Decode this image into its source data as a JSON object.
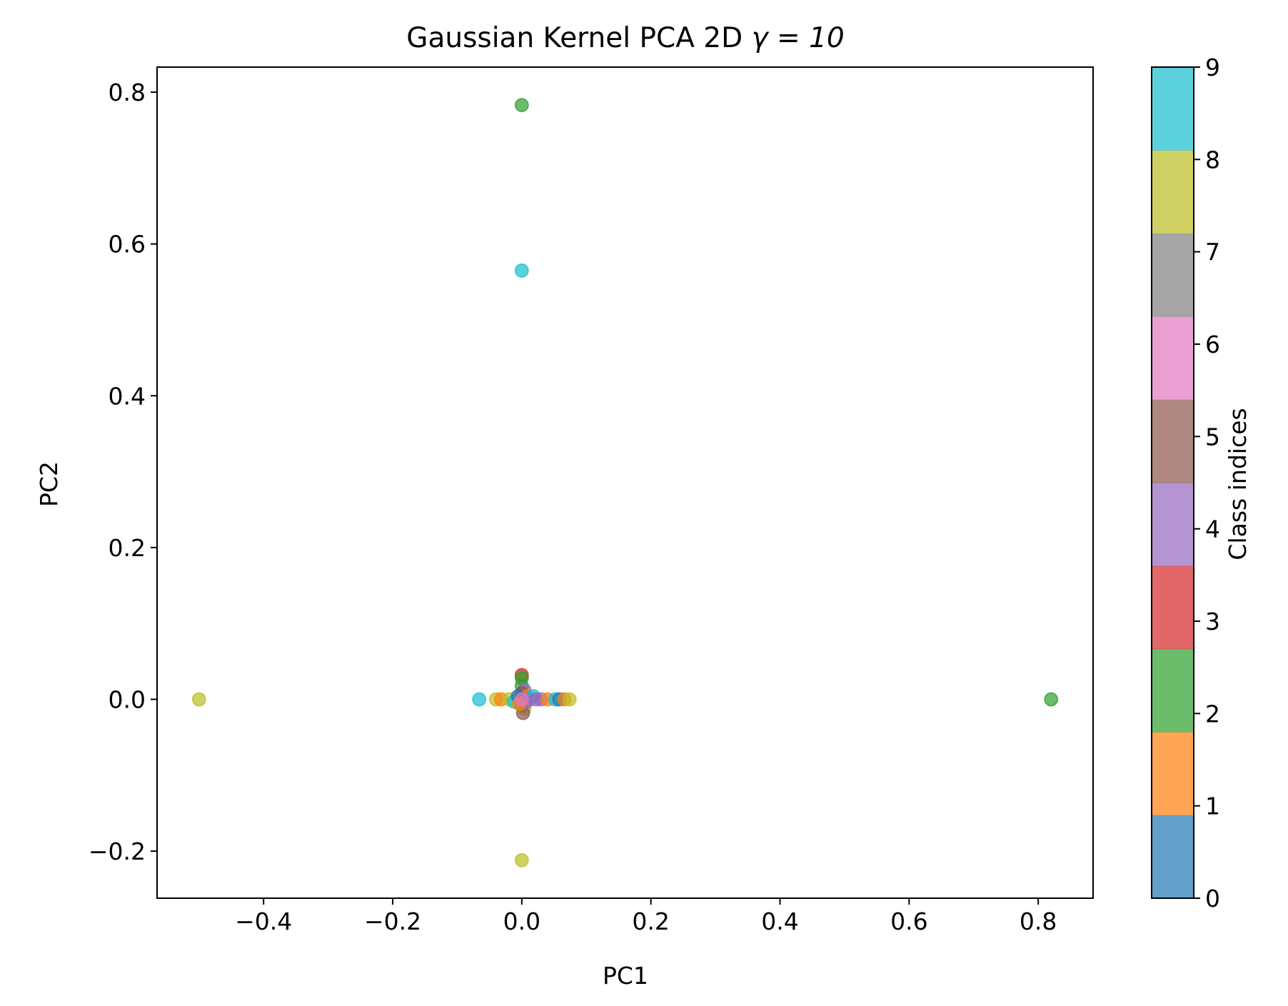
{
  "chart_data": {
    "type": "scatter",
    "title": "Gaussian Kernel PCA 2D",
    "title_math": "γ = 10",
    "xlabel": "PC1",
    "ylabel": "PC2",
    "xlim": [
      -0.565,
      0.885
    ],
    "ylim": [
      -0.262,
      0.833
    ],
    "xticks": [
      -0.4,
      -0.2,
      0.0,
      0.2,
      0.4,
      0.6,
      0.8
    ],
    "xtick_labels": [
      "−0.4",
      "−0.2",
      "0.0",
      "0.2",
      "0.4",
      "0.6",
      "0.8"
    ],
    "yticks": [
      -0.2,
      0.0,
      0.2,
      0.4,
      0.6,
      0.8
    ],
    "ytick_labels": [
      "−0.2",
      "0.0",
      "0.2",
      "0.4",
      "0.6",
      "0.8"
    ],
    "grid": false,
    "colorbar": {
      "label": "Class indices",
      "range": [
        0,
        9
      ],
      "ticks": [
        0,
        1,
        2,
        3,
        4,
        5,
        6,
        7,
        8,
        9
      ],
      "tick_labels": [
        "0",
        "1",
        "2",
        "3",
        "4",
        "5",
        "6",
        "7",
        "8",
        "9"
      ],
      "colors": [
        "#1f77b4",
        "#ff7f0e",
        "#2ca02c",
        "#d62728",
        "#9467bd",
        "#8c564b",
        "#e377c2",
        "#7f7f7f",
        "#bcbd22",
        "#17becf"
      ],
      "alpha": 0.7
    },
    "points": [
      {
        "x": 0.0,
        "y": 0.783,
        "class": 2
      },
      {
        "x": 0.0,
        "y": 0.565,
        "class": 9
      },
      {
        "x": -0.5,
        "y": 0.0,
        "class": 8
      },
      {
        "x": 0.82,
        "y": 0.0,
        "class": 2
      },
      {
        "x": 0.0,
        "y": -0.212,
        "class": 8
      },
      {
        "x": -0.066,
        "y": 0.0,
        "class": 9
      },
      {
        "x": -0.04,
        "y": 0.0,
        "class": 8
      },
      {
        "x": -0.032,
        "y": 0.0,
        "class": 1
      },
      {
        "x": -0.02,
        "y": 0.0,
        "class": 8
      },
      {
        "x": -0.012,
        "y": -0.003,
        "class": 9
      },
      {
        "x": 0.0,
        "y": 0.032,
        "class": 3
      },
      {
        "x": 0.0,
        "y": 0.028,
        "class": 2
      },
      {
        "x": 0.0,
        "y": 0.018,
        "class": 2
      },
      {
        "x": 0.004,
        "y": 0.012,
        "class": 4
      },
      {
        "x": 0.0,
        "y": 0.008,
        "class": 5
      },
      {
        "x": 0.008,
        "y": 0.004,
        "class": 1
      },
      {
        "x": -0.006,
        "y": 0.004,
        "class": 0
      },
      {
        "x": 0.012,
        "y": 0.0,
        "class": 4
      },
      {
        "x": 0.018,
        "y": 0.004,
        "class": 9
      },
      {
        "x": 0.022,
        "y": 0.0,
        "class": 4
      },
      {
        "x": 0.03,
        "y": 0.0,
        "class": 4
      },
      {
        "x": 0.04,
        "y": 0.0,
        "class": 1
      },
      {
        "x": 0.052,
        "y": 0.0,
        "class": 9
      },
      {
        "x": 0.058,
        "y": 0.0,
        "class": 0
      },
      {
        "x": 0.066,
        "y": 0.0,
        "class": 1
      },
      {
        "x": 0.074,
        "y": 0.0,
        "class": 8
      },
      {
        "x": 0.0,
        "y": -0.008,
        "class": 2
      },
      {
        "x": 0.004,
        "y": -0.012,
        "class": 8
      },
      {
        "x": 0.002,
        "y": -0.018,
        "class": 5
      },
      {
        "x": 0.006,
        "y": -0.004,
        "class": 4
      },
      {
        "x": -0.004,
        "y": -0.006,
        "class": 1
      },
      {
        "x": 0.0,
        "y": 0.0,
        "class": 6
      }
    ]
  }
}
